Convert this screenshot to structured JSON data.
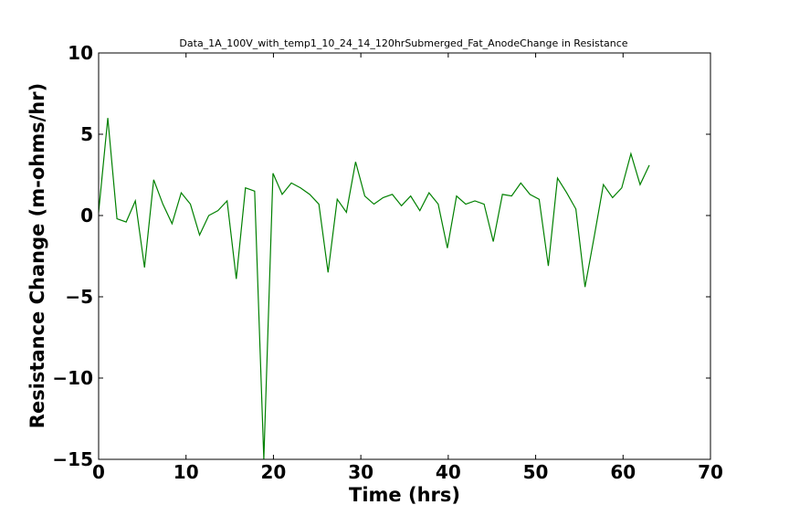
{
  "chart_data": {
    "type": "line",
    "title": "Data_1A_100V_with_temp1_10_24_14_120hrSubmerged_Fat_AnodeChange in Resistance",
    "xlabel": "Time (hrs)",
    "ylabel": "Resistance Change (m-ohms/hr)",
    "xlim": [
      0,
      70
    ],
    "ylim": [
      -15,
      10
    ],
    "xticks": [
      0,
      10,
      20,
      30,
      40,
      50,
      60,
      70
    ],
    "xtick_labels": [
      "0",
      "10",
      "20",
      "30",
      "40",
      "50",
      "60",
      "70"
    ],
    "yticks": [
      10,
      5,
      0,
      -5,
      -10,
      -15
    ],
    "ytick_labels": [
      "10",
      "5",
      "0",
      "−5",
      "−10",
      "−15"
    ],
    "grid": false,
    "series": [
      {
        "color": "#008000",
        "x": [
          0,
          1.05,
          2.1,
          3.15,
          4.2,
          5.25,
          6.3,
          7.35,
          8.4,
          9.45,
          10.5,
          11.55,
          12.6,
          13.65,
          14.7,
          15.75,
          16.8,
          17.85,
          18.9,
          19.95,
          21.0,
          22.05,
          23.1,
          24.15,
          25.2,
          26.25,
          27.3,
          28.35,
          29.4,
          30.45,
          31.5,
          32.55,
          33.6,
          34.65,
          35.7,
          36.75,
          37.8,
          38.85,
          39.9,
          40.95,
          42.0,
          43.05,
          44.1,
          45.15,
          46.2,
          47.25,
          48.3,
          49.35,
          50.4,
          51.45,
          52.5,
          53.55,
          54.6,
          55.65,
          56.7,
          57.75,
          58.8,
          59.85,
          60.9,
          61.95,
          63.0
        ],
        "y": [
          0.2,
          6.0,
          -0.2,
          -0.4,
          0.9,
          -3.2,
          2.2,
          0.7,
          -0.5,
          1.4,
          0.7,
          -1.2,
          0.0,
          0.3,
          0.9,
          -3.9,
          1.7,
          1.5,
          -15.0,
          2.6,
          1.3,
          2.0,
          1.7,
          1.3,
          0.7,
          -3.5,
          1.0,
          0.2,
          3.3,
          1.2,
          0.7,
          1.1,
          1.3,
          0.6,
          1.2,
          0.3,
          1.4,
          0.7,
          -2.0,
          1.2,
          0.7,
          0.9,
          0.7,
          -1.6,
          1.3,
          1.2,
          2.0,
          1.3,
          1.0,
          -3.1,
          2.3,
          1.4,
          0.4,
          -4.4,
          -1.3,
          1.9,
          1.1,
          1.7,
          3.8,
          1.9,
          3.1
        ]
      }
    ]
  }
}
